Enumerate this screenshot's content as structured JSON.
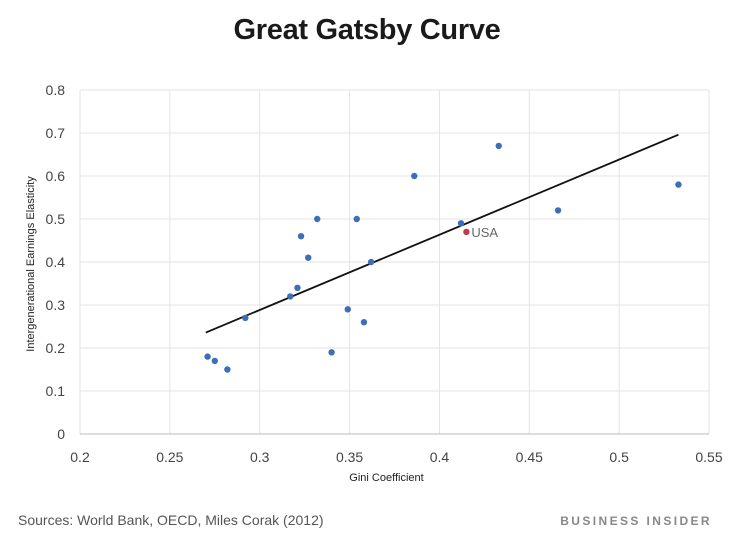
{
  "header": {
    "title": "Great Gatsby Curve"
  },
  "footer": {
    "source": "Sources: World Bank, OECD, Miles Corak (2012)",
    "brand": "BUSINESS INSIDER"
  },
  "chart_data": {
    "type": "scatter",
    "title": "Great Gatsby Curve",
    "xlabel": "Gini Coefficient",
    "ylabel": "Intergenerational Earnings Elasticity",
    "xlim": [
      0.2,
      0.55
    ],
    "ylim": [
      0,
      0.8
    ],
    "x_ticks": [
      0.2,
      0.25,
      0.3,
      0.35,
      0.4,
      0.45,
      0.5,
      0.55
    ],
    "x_tick_labels": [
      "0.2",
      "0.25",
      "0.3",
      "0.35",
      "0.4",
      "0.45",
      "0.5",
      "0.55"
    ],
    "y_ticks": [
      0,
      0.1,
      0.2,
      0.3,
      0.4,
      0.5,
      0.6,
      0.7,
      0.8
    ],
    "y_tick_labels": [
      "0",
      "0.1",
      "0.2",
      "0.3",
      "0.4",
      "0.5",
      "0.6",
      "0.7",
      "0.8"
    ],
    "grid": true,
    "point_color": "#3d6fb8",
    "highlight_color": "#c0364a",
    "trend_color": "#111111",
    "points": [
      {
        "x": 0.271,
        "y": 0.18
      },
      {
        "x": 0.275,
        "y": 0.17
      },
      {
        "x": 0.282,
        "y": 0.15
      },
      {
        "x": 0.292,
        "y": 0.27
      },
      {
        "x": 0.317,
        "y": 0.32
      },
      {
        "x": 0.321,
        "y": 0.34
      },
      {
        "x": 0.323,
        "y": 0.46
      },
      {
        "x": 0.327,
        "y": 0.41
      },
      {
        "x": 0.332,
        "y": 0.5
      },
      {
        "x": 0.34,
        "y": 0.19
      },
      {
        "x": 0.349,
        "y": 0.29
      },
      {
        "x": 0.354,
        "y": 0.5
      },
      {
        "x": 0.358,
        "y": 0.26
      },
      {
        "x": 0.362,
        "y": 0.4
      },
      {
        "x": 0.386,
        "y": 0.6
      },
      {
        "x": 0.412,
        "y": 0.49
      },
      {
        "x": 0.433,
        "y": 0.67
      },
      {
        "x": 0.466,
        "y": 0.52
      },
      {
        "x": 0.533,
        "y": 0.58
      }
    ],
    "highlight": {
      "label": "USA",
      "x": 0.415,
      "y": 0.47
    },
    "trendline": {
      "x": [
        0.27,
        0.533
      ],
      "y": [
        0.236,
        0.696
      ]
    }
  }
}
